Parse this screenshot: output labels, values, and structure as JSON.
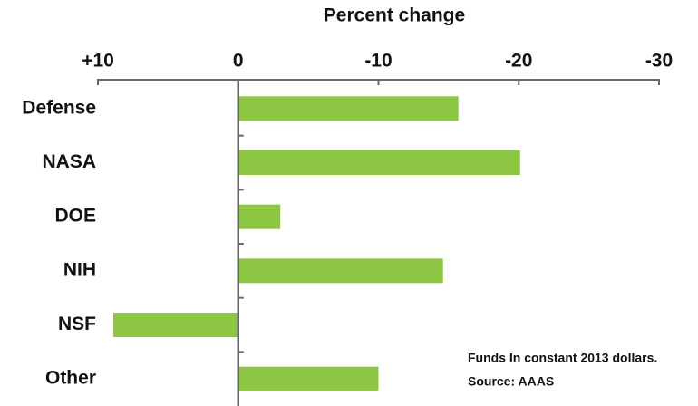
{
  "chart_data": {
    "type": "bar",
    "orientation": "horizontal",
    "x_label": "Percent change",
    "categories": [
      "Defense",
      "NASA",
      "DOE",
      "NIH",
      "NSF",
      "Other"
    ],
    "values": [
      -15.7,
      -20.1,
      -3.0,
      -14.6,
      8.9,
      -10.0
    ],
    "color": "#8dc642",
    "xlim": [
      10,
      -30
    ],
    "xticks": [
      {
        "value": 10,
        "label": "+10"
      },
      0,
      -10,
      -20,
      -30
    ],
    "notes": [
      "Funds In constant 2013 dollars.",
      "Source: AAAS"
    ]
  }
}
